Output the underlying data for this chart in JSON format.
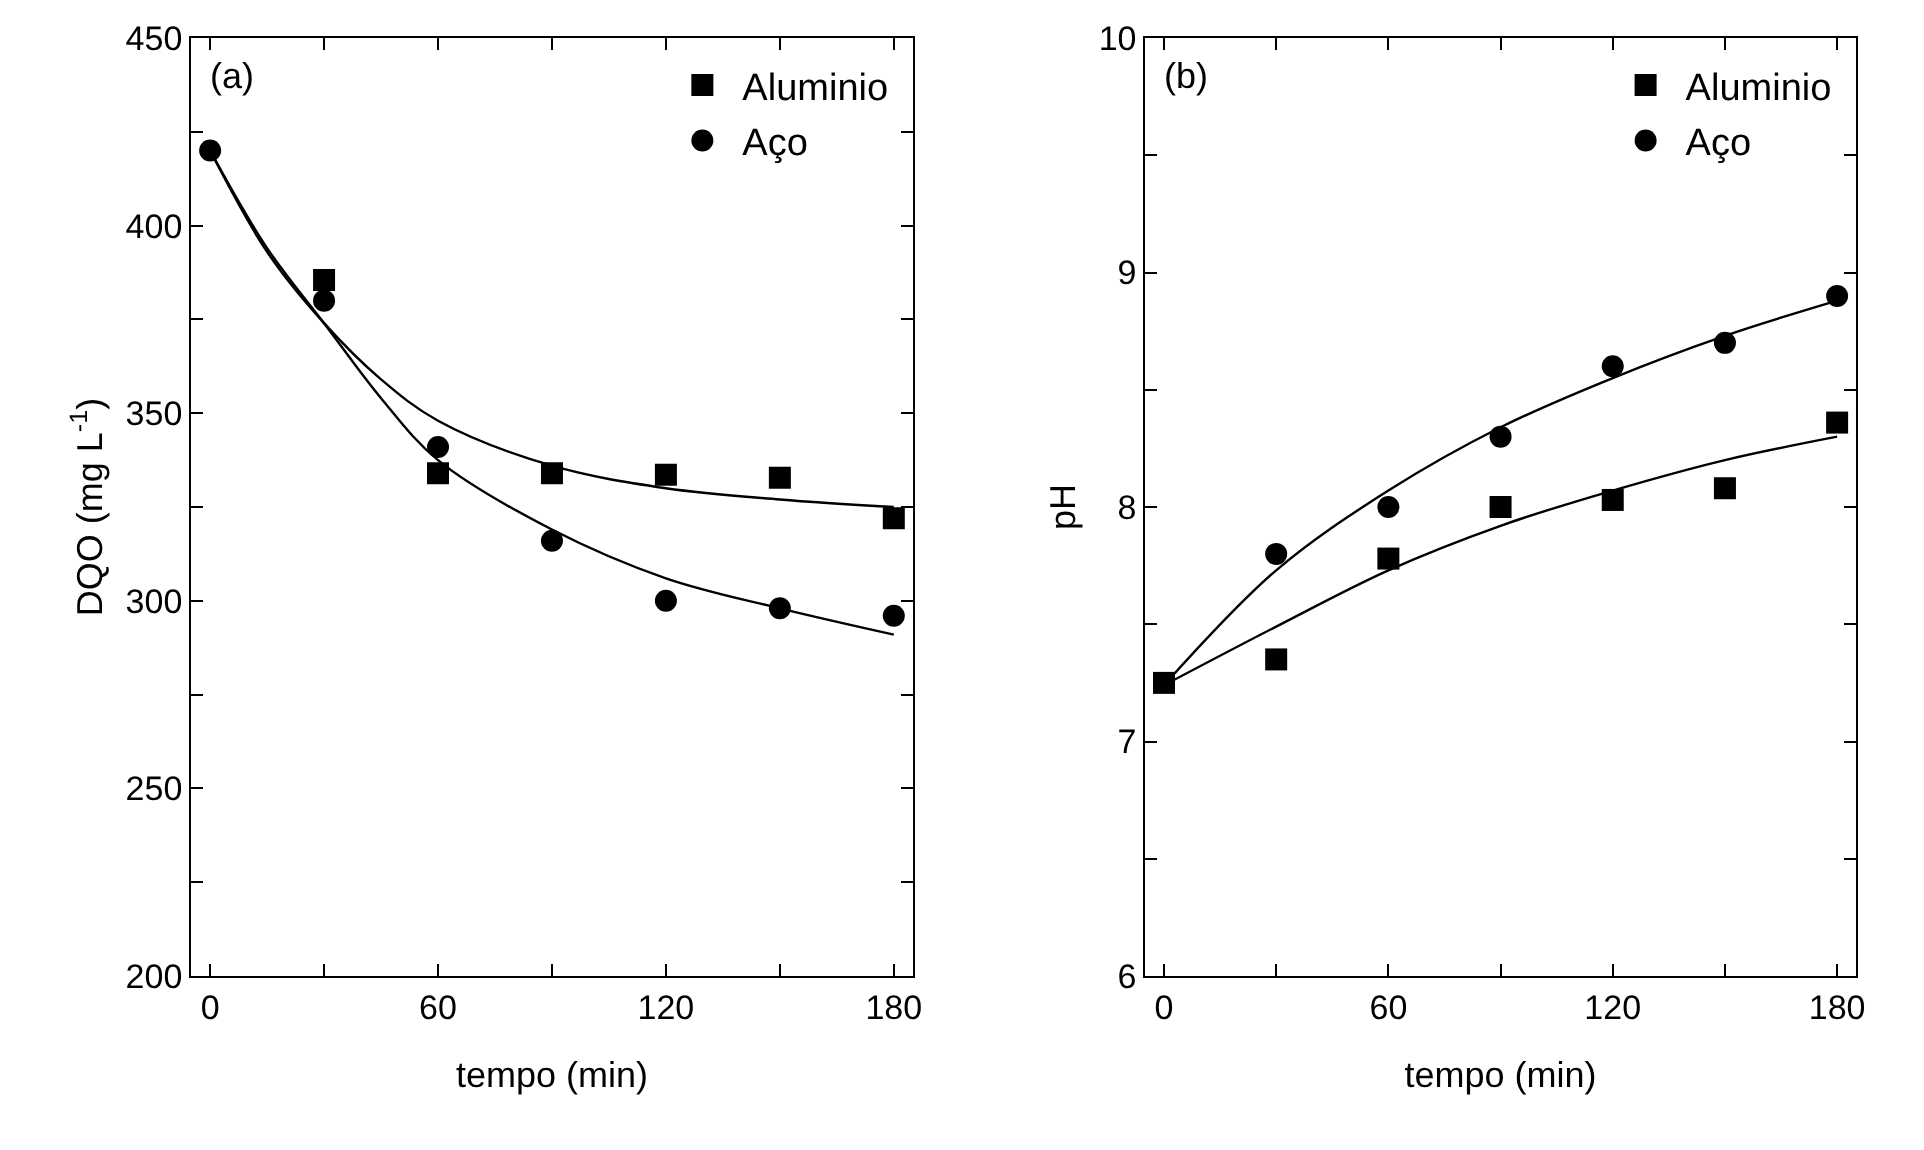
{
  "chart_data": [
    {
      "type": "scatter",
      "xlabel": "tempo (min)",
      "ylabel": "DQO (mg L$^{-1}$)",
      "annotations": [
        "(a)"
      ],
      "xlim": [
        -5,
        185
      ],
      "xticks": [
        0,
        {
          "value": 30,
          "label": null
        },
        60,
        {
          "value": 90,
          "label": null
        },
        120,
        {
          "value": 150,
          "label": null
        },
        180
      ],
      "ylim": [
        200,
        450
      ],
      "yticks": [
        200,
        {
          "value": 225,
          "label": null
        },
        250,
        {
          "value": 275,
          "label": null
        },
        300,
        {
          "value": 325,
          "label": null
        },
        350,
        {
          "value": 375,
          "label": null
        },
        400,
        {
          "value": 425,
          "label": null
        },
        450
      ],
      "legend": "top right",
      "series": [
        {
          "name": "Aluminio",
          "type": "scatter",
          "marker": "square",
          "color": "#000000",
          "x": [
            30,
            60,
            90,
            120,
            150,
            180
          ],
          "values": [
            385.5,
            334,
            334,
            333.6,
            332.8,
            322
          ]
        },
        {
          "name": "Aço",
          "type": "scatter",
          "marker": "circle",
          "color": "#000000",
          "x": [
            0,
            30,
            60,
            90,
            120,
            150,
            180
          ],
          "values": [
            420,
            380,
            341,
            316,
            300,
            298,
            296
          ]
        },
        {
          "type": "line",
          "marker": "none",
          "line_style": "solid",
          "color": "#000000",
          "x": [
            0,
            15,
            30,
            45,
            60,
            90,
            120,
            150,
            180
          ],
          "values": [
            420,
            393,
            374,
            359,
            348,
            336,
            330,
            327,
            325
          ]
        },
        {
          "type": "line",
          "marker": "none",
          "line_style": "solid",
          "color": "#000000",
          "x": [
            0,
            15,
            30,
            45,
            60,
            90,
            120,
            150,
            180
          ],
          "values": [
            420,
            394,
            374,
            354,
            337.5,
            319,
            306,
            298,
            291
          ]
        }
      ]
    },
    {
      "type": "scatter",
      "xlabel": "tempo (min)",
      "ylabel": "pH",
      "annotations": [
        "(b)"
      ],
      "xlim": [
        -5,
        185
      ],
      "xticks": [
        0,
        {
          "value": 30,
          "label": null
        },
        60,
        {
          "value": 90,
          "label": null
        },
        120,
        {
          "value": 150,
          "label": null
        },
        180
      ],
      "ylim": [
        6,
        10
      ],
      "yticks": [
        6,
        {
          "value": 6.5,
          "label": null
        },
        7,
        {
          "value": 7.5,
          "label": null
        },
        8,
        {
          "value": 8.5,
          "label": null
        },
        9,
        {
          "value": 9.5,
          "label": null
        },
        10
      ],
      "legend": "top right",
      "series": [
        {
          "name": "Aluminio",
          "type": "scatter",
          "marker": "square",
          "color": "#000000",
          "x": [
            0,
            30,
            60,
            90,
            120,
            150,
            180
          ],
          "values": [
            7.25,
            7.35,
            7.78,
            8.0,
            8.03,
            8.08,
            8.36
          ]
        },
        {
          "name": "Aço",
          "type": "scatter",
          "marker": "circle",
          "color": "#000000",
          "x": [
            30,
            60,
            90,
            120,
            150,
            180
          ],
          "values": [
            7.8,
            8.0,
            8.3,
            8.6,
            8.7,
            8.9
          ]
        },
        {
          "type": "line",
          "marker": "none",
          "line_style": "solid",
          "color": "#000000",
          "x": [
            0,
            30,
            60,
            90,
            120,
            150,
            180
          ],
          "values": [
            7.24,
            7.49,
            7.73,
            7.92,
            8.07,
            8.2,
            8.3
          ]
        },
        {
          "type": "line",
          "marker": "none",
          "line_style": "solid",
          "color": "#000000",
          "x": [
            0,
            30,
            60,
            90,
            120,
            150,
            180
          ],
          "values": [
            7.24,
            7.73,
            8.07,
            8.34,
            8.55,
            8.73,
            8.88
          ]
        }
      ]
    }
  ]
}
